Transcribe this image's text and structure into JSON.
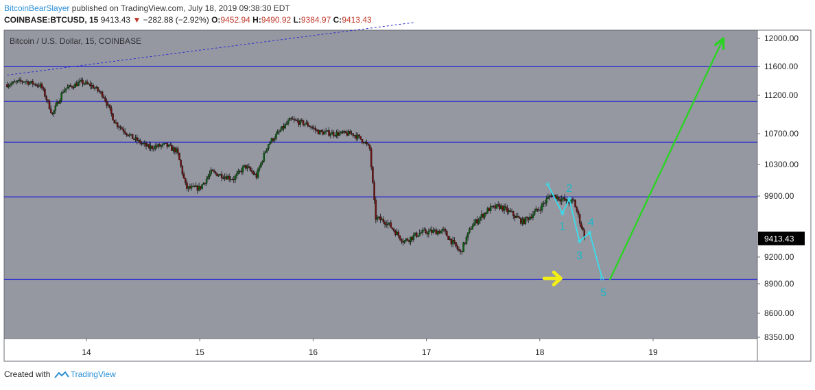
{
  "header": {
    "author": "BitcoinBearSlayer",
    "published": " published on TradingView.com, July 18, 2019 09:38:30 EDT",
    "symbol": "COINBASE:BTCUSD, 15",
    "last": "9413.43",
    "arrow": "▼",
    "change": "−282.88 (−2.92%)",
    "o_label": "O:",
    "o_value": "9452.94",
    "h_label": "H:",
    "h_value": "9490.92",
    "l_label": "L:",
    "l_value": "9384.97",
    "c_label": "C:",
    "c_value": "9413.43"
  },
  "footer": {
    "created_with": "Created with",
    "brand": "TradingView"
  },
  "chart_data": {
    "type": "candlestick",
    "title": "Bitcoin / U.S. Dollar, 15, COINBASE",
    "x_ticks": [
      "14",
      "15",
      "16",
      "17",
      "18",
      "19"
    ],
    "x_range": [
      13.3,
      19.9
    ],
    "y_ticks": [
      12000.0,
      11600.0,
      11200.0,
      10700.0,
      10300.0,
      9900.0,
      9200.0,
      8900.0,
      8600.0,
      8350.0
    ],
    "y_ticks_labels": [
      "12000.00",
      "11600.00",
      "11200.00",
      "10700.00",
      "10300.00",
      "9900.00",
      "9200.00",
      "8900.00",
      "8600.00",
      "8350.00"
    ],
    "y_ticks_partial": [
      9500.0
    ],
    "y_range": [
      8300,
      12100
    ],
    "last_price": 9413.43,
    "last_price_label": "9413.43",
    "price_path": [
      [
        13.3,
        11350
      ],
      [
        13.45,
        11400
      ],
      [
        13.6,
        11330
      ],
      [
        13.7,
        10950
      ],
      [
        13.8,
        11280
      ],
      [
        13.95,
        11380
      ],
      [
        14.05,
        11330
      ],
      [
        14.15,
        11200
      ],
      [
        14.25,
        10850
      ],
      [
        14.4,
        10650
      ],
      [
        14.55,
        10520
      ],
      [
        14.7,
        10550
      ],
      [
        14.8,
        10470
      ],
      [
        14.88,
        10000
      ],
      [
        15.0,
        10000
      ],
      [
        15.1,
        10200
      ],
      [
        15.3,
        10120
      ],
      [
        15.4,
        10280
      ],
      [
        15.5,
        10150
      ],
      [
        15.6,
        10560
      ],
      [
        15.7,
        10720
      ],
      [
        15.8,
        10880
      ],
      [
        15.95,
        10820
      ],
      [
        16.05,
        10720
      ],
      [
        16.2,
        10700
      ],
      [
        16.35,
        10700
      ],
      [
        16.45,
        10600
      ],
      [
        16.5,
        10500
      ],
      [
        16.55,
        9650
      ],
      [
        16.65,
        9600
      ],
      [
        16.8,
        9380
      ],
      [
        16.95,
        9480
      ],
      [
        17.15,
        9500
      ],
      [
        17.3,
        9250
      ],
      [
        17.4,
        9560
      ],
      [
        17.55,
        9750
      ],
      [
        17.65,
        9780
      ],
      [
        17.75,
        9700
      ],
      [
        17.85,
        9600
      ],
      [
        18.0,
        9760
      ],
      [
        18.1,
        9920
      ],
      [
        18.25,
        9830
      ],
      [
        18.3,
        9840
      ],
      [
        18.4,
        9413
      ]
    ],
    "horizontal_levels": [
      11600,
      11120,
      10590,
      9890,
      8950
    ],
    "trendline": {
      "from": [
        13.3,
        11480
      ],
      "to": [
        16.9,
        12130
      ]
    },
    "wave_projection": [
      [
        18.07,
        10050
      ],
      [
        18.2,
        9700
      ],
      [
        18.26,
        9870
      ],
      [
        18.35,
        9380
      ],
      [
        18.44,
        9480
      ],
      [
        18.55,
        8960
      ]
    ],
    "wave_labels": [
      "1",
      "2",
      "3",
      "4",
      "5"
    ],
    "target_arrow": {
      "from": [
        18.62,
        8950
      ],
      "to": [
        19.62,
        12000
      ]
    },
    "marker_arrow_at": [
      18.1,
      8960
    ]
  }
}
